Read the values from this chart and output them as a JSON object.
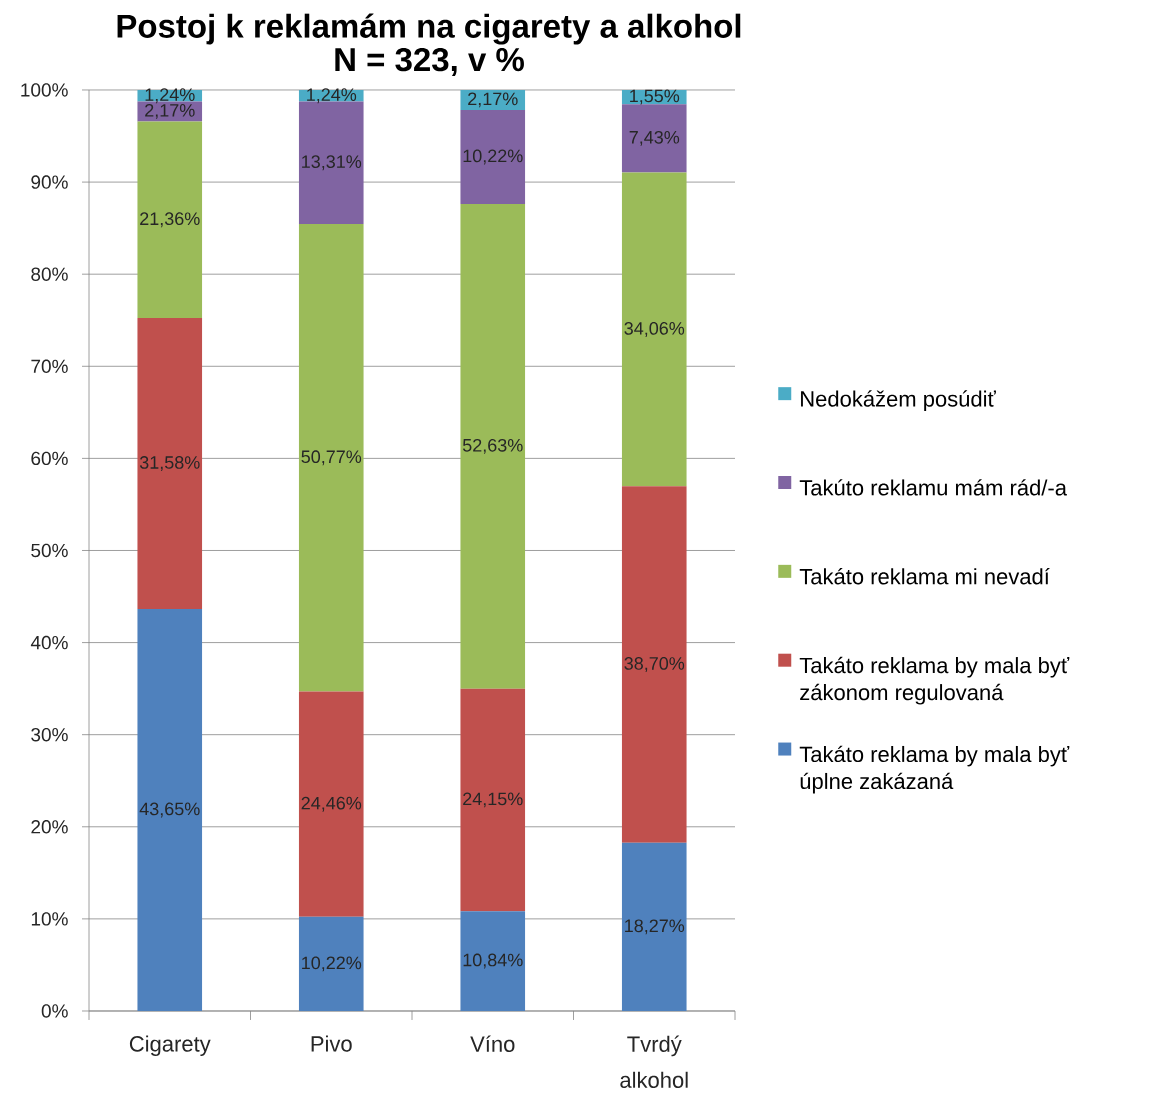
{
  "chart_data": {
    "type": "bar",
    "title": "Postoj k reklamám na cigarety a alkohol",
    "subtitle": "N = 323, v %",
    "categories": [
      "Cigarety",
      "Pivo",
      "Víno",
      "Tvrdý alkohol"
    ],
    "stacked": true,
    "series": [
      {
        "name": "Takáto reklama by mala byť úplne zakázaná",
        "color": "#4f81bd",
        "values": [
          43.65,
          10.22,
          10.84,
          18.27
        ],
        "value_labels": [
          "43,65%",
          "10,22%",
          "10,84%",
          "18,27%"
        ]
      },
      {
        "name": "Takáto reklama by mala byť zákonom regulovaná",
        "color": "#c0504d",
        "values": [
          31.58,
          24.46,
          24.15,
          38.7
        ],
        "value_labels": [
          "31,58%",
          "24,46%",
          "24,15%",
          "38,70%"
        ]
      },
      {
        "name": "Takáto reklama mi nevadí",
        "color": "#9bbb59",
        "values": [
          21.36,
          50.77,
          52.63,
          34.06
        ],
        "value_labels": [
          "21,36%",
          "50,77%",
          "52,63%",
          "34,06%"
        ]
      },
      {
        "name": "Takúto reklamu mám rád/-a",
        "color": "#8064a2",
        "values": [
          2.17,
          13.31,
          10.22,
          7.43
        ],
        "value_labels": [
          "2,17%",
          "13,31%",
          "10,22%",
          "7,43%"
        ]
      },
      {
        "name": "Nedokážem posúdiť",
        "color": "#4bacc6",
        "values": [
          1.24,
          1.24,
          2.17,
          1.55
        ],
        "value_labels": [
          "1,24%",
          "1,24%",
          "2,17%",
          "1,55%"
        ]
      }
    ],
    "ylim": [
      0,
      100
    ],
    "yticks": [
      {
        "value": 0,
        "label": "0%"
      },
      {
        "value": 10,
        "label": "10%"
      },
      {
        "value": 20,
        "label": "20%"
      },
      {
        "value": 30,
        "label": "30%"
      },
      {
        "value": 40,
        "label": "40%"
      },
      {
        "value": 50,
        "label": "50%"
      },
      {
        "value": 60,
        "label": "60%"
      },
      {
        "value": 70,
        "label": "70%"
      },
      {
        "value": 80,
        "label": "80%"
      },
      {
        "value": 90,
        "label": "90%"
      },
      {
        "value": 100,
        "label": "100%"
      }
    ],
    "grid": "y",
    "legend": "right"
  }
}
